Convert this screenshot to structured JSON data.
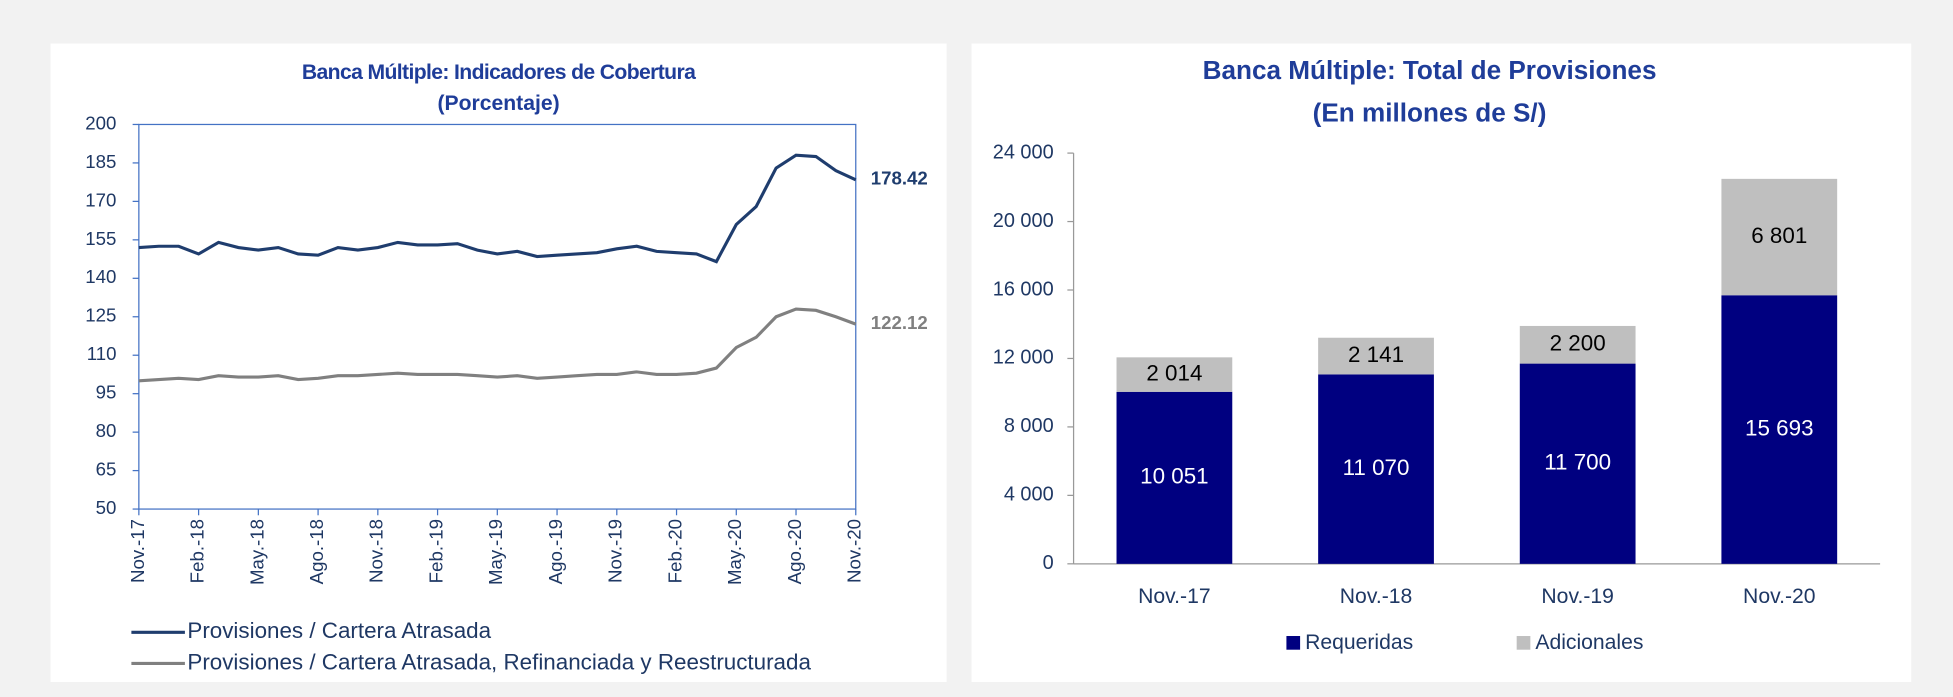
{
  "chart_data": [
    {
      "type": "line",
      "title": "Banca Múltiple: Indicadores de Cobertura",
      "subtitle": "(Porcentaje)",
      "categories": [
        "Nov.-17",
        null,
        null,
        "Feb.-18",
        null,
        null,
        "May.-18",
        null,
        null,
        "Ago.-18",
        null,
        null,
        "Nov.-18",
        null,
        null,
        "Feb.-19",
        null,
        null,
        "May.-19",
        null,
        null,
        "Ago.-19",
        null,
        null,
        "Nov.-19",
        null,
        null,
        "Feb.-20",
        null,
        null,
        "May.-20",
        null,
        null,
        "Ago.-20",
        null,
        null,
        "Nov.-20"
      ],
      "series": [
        {
          "name": "Provisiones / Cartera Atrasada",
          "color": "#1f3d6e",
          "values": [
            152,
            152.5,
            152.5,
            149.5,
            154,
            152,
            151,
            152,
            149.5,
            149,
            152,
            151,
            152,
            154,
            153,
            153,
            153.5,
            151,
            149.5,
            150.5,
            148.5,
            149,
            149.5,
            150,
            151.5,
            152.5,
            150.5,
            150,
            149.5,
            146.5,
            161,
            168,
            183,
            188,
            187.5,
            182,
            178.42
          ]
        },
        {
          "name": "Provisiones / Cartera Atrasada, Refinanciada y Reestructurada",
          "color": "#808080",
          "values": [
            100,
            100.5,
            101,
            100.5,
            102,
            101.5,
            101.5,
            102,
            100.5,
            101,
            102,
            102,
            102.5,
            103,
            102.5,
            102.5,
            102.5,
            102,
            101.5,
            102,
            101,
            101.5,
            102,
            102.5,
            102.5,
            103.5,
            102.5,
            102.5,
            103,
            105,
            113,
            117,
            125,
            128,
            127.5,
            125,
            122.12
          ]
        }
      ],
      "ylim": [
        50,
        200
      ],
      "yticks": [
        50,
        65,
        80,
        95,
        110,
        125,
        140,
        155,
        170,
        185,
        200
      ]
    },
    {
      "type": "stacked_bar",
      "title": "Banca Múltiple: Total de Provisiones",
      "subtitle": "(En millones de S/)",
      "categories": [
        "Nov.-17",
        "Nov.-18",
        "Nov.-19",
        "Nov.-20"
      ],
      "series": [
        {
          "name": "Requeridas",
          "color": "#000080",
          "values": [
            10051,
            11070,
            11700,
            15693
          ],
          "value_labels": [
            "10 051",
            "11 070",
            "11 700",
            "15 693"
          ]
        },
        {
          "name": "Adicionales",
          "color": "#bfbfbf",
          "values": [
            2014,
            2141,
            2200,
            6801
          ],
          "value_labels": [
            "2 014",
            "2 141",
            "2 200",
            "6 801"
          ]
        }
      ],
      "ylim": [
        0,
        24000
      ],
      "yticks": [
        0,
        {
          "value": 4000,
          "label": "4 000"
        },
        {
          "value": 8000,
          "label": "8 000"
        },
        {
          "value": 12000,
          "label": "12 000"
        },
        {
          "value": 16000,
          "label": "16 000"
        },
        {
          "value": 20000,
          "label": "20 000"
        },
        {
          "value": 24000,
          "label": "24 000"
        }
      ]
    }
  ]
}
